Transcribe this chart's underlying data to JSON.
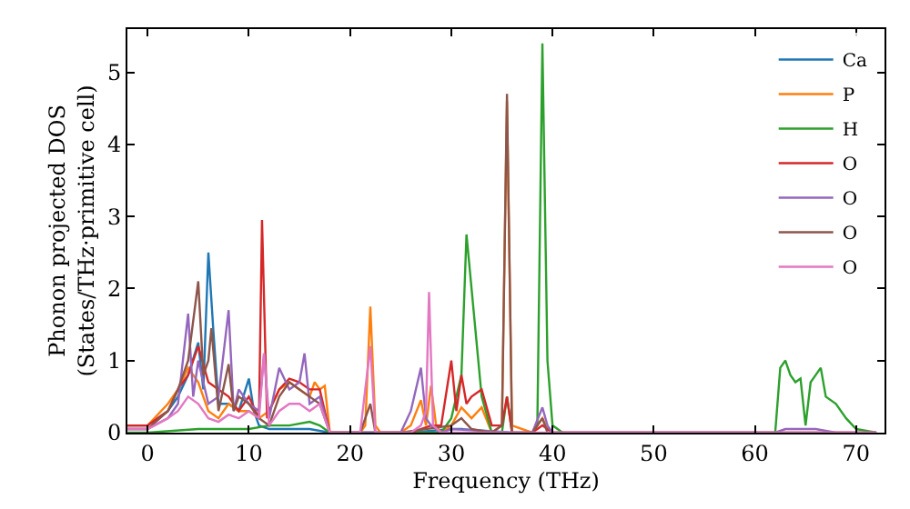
{
  "chart_data": {
    "type": "line",
    "xlabel": "Frequency (THz)",
    "ylabel": "Phonon projected DOS\n(States/THz·primitive cell)",
    "xlim": [
      -2,
      72.8
    ],
    "ylim": [
      0,
      5.6
    ],
    "xticks": [
      0,
      10,
      20,
      30,
      40,
      50,
      60,
      70
    ],
    "yticks": [
      0,
      1,
      2,
      3,
      4,
      5
    ],
    "grid": false,
    "legend": "top right",
    "marker": "none",
    "line_style": "solid",
    "series": [
      {
        "name": "Ca",
        "color": "#1f77b4",
        "x": [
          -2,
          0,
          2,
          3,
          4,
          5,
          5.5,
          6,
          6.5,
          7,
          8,
          9,
          10,
          10.5,
          11,
          12,
          14,
          16,
          18,
          20,
          26,
          30,
          31,
          34,
          36
        ],
        "values": [
          0.1,
          0.1,
          0.3,
          0.5,
          0.8,
          1.25,
          0.6,
          2.5,
          1.4,
          0.4,
          0.4,
          0.3,
          0.75,
          0.3,
          0.1,
          0.05,
          0.05,
          0.05,
          0,
          0,
          0,
          0.05,
          0.05,
          0.02,
          0
        ]
      },
      {
        "name": "P",
        "color": "#ff7f0e",
        "x": [
          -2,
          0,
          2,
          3,
          4,
          5,
          6,
          7,
          8,
          9,
          10,
          11,
          12,
          13,
          14,
          15,
          16,
          16.5,
          17,
          17.5,
          18,
          21,
          21.5,
          22,
          22.5,
          23,
          25,
          26,
          27,
          27.5,
          28,
          28.5,
          29,
          30,
          31,
          32,
          33,
          34,
          35,
          35.5,
          36,
          38,
          39,
          39.5
        ],
        "values": [
          0.1,
          0.1,
          0.4,
          0.6,
          0.9,
          0.7,
          0.3,
          0.2,
          0.4,
          0.3,
          0.3,
          0.2,
          0.3,
          0.6,
          0.7,
          0.6,
          0.5,
          0.7,
          0.6,
          0.65,
          0,
          0,
          0.1,
          1.75,
          0.1,
          0,
          0,
          0.1,
          0.45,
          0.1,
          0.65,
          0.1,
          0,
          0.1,
          0.35,
          0.2,
          0.35,
          0,
          0.1,
          4.6,
          0.1,
          0,
          0.2,
          0.05
        ]
      },
      {
        "name": "H",
        "color": "#2ca02c",
        "x": [
          -2,
          0,
          5,
          10,
          12,
          14,
          16,
          17,
          18,
          25,
          29,
          30,
          31,
          31.5,
          32,
          33,
          34,
          35,
          35.5,
          36,
          38,
          38.5,
          39,
          39.5,
          40,
          41,
          62,
          62.5,
          63,
          63.5,
          64,
          64.5,
          65,
          65.5,
          66,
          66.5,
          67,
          68,
          69,
          70,
          72
        ],
        "values": [
          0,
          0,
          0.05,
          0.05,
          0.1,
          0.1,
          0.15,
          0.1,
          0,
          0,
          0,
          0.2,
          0.8,
          2.75,
          2,
          0.5,
          0,
          0,
          0.5,
          0,
          0,
          0.1,
          5.4,
          1,
          0.1,
          0,
          0,
          0.9,
          1.0,
          0.8,
          0.7,
          0.75,
          0.1,
          0.7,
          0.8,
          0.9,
          0.5,
          0.4,
          0.2,
          0.05,
          0
        ]
      },
      {
        "name": "O",
        "color": "#d62728",
        "x": [
          -2,
          0,
          2,
          3,
          4,
          5,
          6,
          7,
          8,
          9,
          10,
          11,
          11.3,
          11.8,
          12,
          13,
          14,
          15,
          16,
          17,
          18,
          26,
          28,
          29,
          30,
          30.5,
          31,
          31.5,
          32,
          33,
          34,
          35,
          35.5,
          36,
          38,
          39,
          40,
          72
        ],
        "values": [
          0.1,
          0.1,
          0.3,
          0.6,
          0.8,
          1.2,
          0.7,
          0.6,
          0.5,
          0.3,
          0.5,
          0.2,
          2.95,
          0.2,
          0.3,
          0.6,
          0.75,
          0.7,
          0.6,
          0.6,
          0,
          0,
          0.1,
          0.1,
          1.0,
          0.3,
          0.8,
          0.4,
          0.5,
          0.6,
          0.1,
          0.1,
          0.5,
          0,
          0,
          0.1,
          0,
          0
        ]
      },
      {
        "name": "O",
        "color": "#9467bd",
        "x": [
          -2,
          0,
          2,
          3,
          4,
          4.5,
          5,
          6,
          7,
          8,
          8.5,
          9,
          10,
          11,
          11.5,
          12,
          13,
          14,
          15,
          15.5,
          16,
          17,
          18,
          25,
          26,
          27,
          27.5,
          28,
          29,
          30,
          36,
          38,
          39,
          39.5,
          40,
          62,
          63,
          66,
          68,
          72
        ],
        "values": [
          0.05,
          0.05,
          0.2,
          0.4,
          1.65,
          0.5,
          1.0,
          0.4,
          0.5,
          1.7,
          0.3,
          0.6,
          0.4,
          0.3,
          1.1,
          0.2,
          0.9,
          0.6,
          0.7,
          1.1,
          0.4,
          0.5,
          0,
          0,
          0.3,
          0.9,
          0.2,
          0.1,
          0,
          0.05,
          0,
          0,
          0.35,
          0.1,
          0,
          0,
          0.05,
          0.05,
          0,
          0
        ]
      },
      {
        "name": "O",
        "color": "#8c564b",
        "x": [
          -2,
          0,
          2,
          3,
          4,
          5,
          5.5,
          6,
          6.3,
          7,
          8,
          8.5,
          9,
          10,
          11,
          12,
          13,
          14,
          15,
          16,
          17,
          18,
          21,
          22,
          22.5,
          25,
          30,
          31,
          32,
          34,
          35,
          35.5,
          36,
          38,
          39,
          39.5,
          40,
          72
        ],
        "values": [
          0.05,
          0.05,
          0.3,
          0.6,
          1.0,
          2.1,
          0.8,
          1.0,
          1.45,
          0.3,
          0.95,
          0.3,
          0.5,
          0.4,
          0.2,
          0.1,
          0.5,
          0.7,
          0.6,
          0.5,
          0.4,
          0,
          0,
          0.4,
          0,
          0,
          0.1,
          0.2,
          0.05,
          0,
          0.1,
          4.7,
          0,
          0,
          0.2,
          0,
          0,
          0
        ]
      },
      {
        "name": "O",
        "color": "#e377c2",
        "x": [
          -2,
          0,
          2,
          3,
          4,
          5,
          6,
          7,
          8,
          9,
          10,
          11,
          11.5,
          12,
          13,
          14,
          15,
          16,
          17,
          18,
          21,
          22,
          22.5,
          26,
          27,
          27.5,
          27.8,
          28.2,
          29,
          30,
          35,
          40,
          72
        ],
        "values": [
          0.05,
          0.05,
          0.2,
          0.3,
          0.5,
          0.4,
          0.2,
          0.15,
          0.25,
          0.2,
          0.3,
          0.2,
          1.1,
          0.1,
          0.3,
          0.4,
          0.4,
          0.3,
          0.4,
          0,
          0,
          1.2,
          0,
          0,
          0.1,
          0.3,
          1.95,
          0.1,
          0,
          0,
          0,
          0,
          0
        ]
      }
    ]
  }
}
